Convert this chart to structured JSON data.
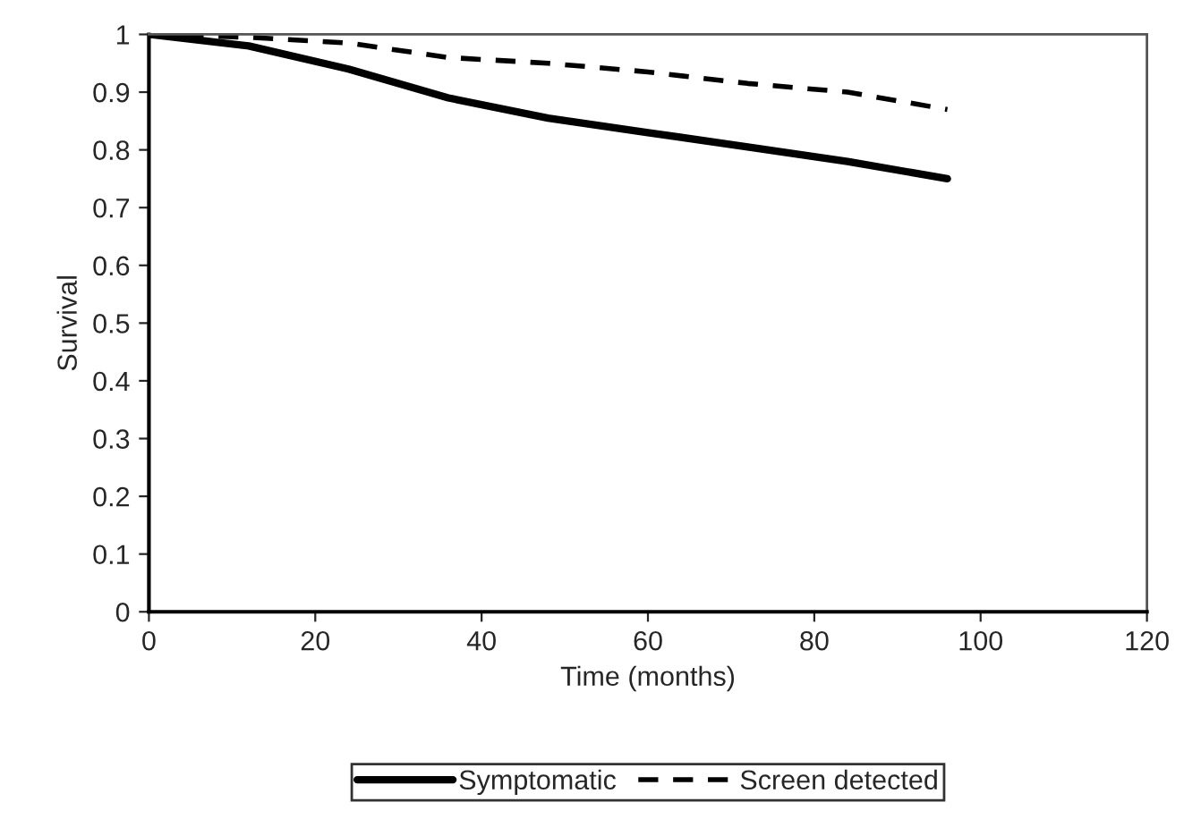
{
  "chart_data": {
    "type": "line",
    "xlabel": "Time (months)",
    "ylabel": "Survival",
    "xlim": [
      0,
      120
    ],
    "xticks": [
      0,
      20,
      40,
      60,
      80,
      100,
      120
    ],
    "ylim": [
      0,
      1
    ],
    "yticks": [
      0,
      0.1,
      0.2,
      0.3,
      0.4,
      0.5,
      0.6,
      0.7,
      0.8,
      0.9,
      1
    ],
    "grid": false,
    "legend": "bottom",
    "series": [
      {
        "name": "Symptomatic",
        "color": "#000000",
        "line_style": "solid",
        "x": [
          0,
          12,
          24,
          36,
          48,
          60,
          72,
          84,
          96
        ],
        "values": [
          1,
          0.98,
          0.94,
          0.89,
          0.855,
          0.83,
          0.805,
          0.78,
          0.75
        ]
      },
      {
        "name": "Screen detected",
        "color": "#000000",
        "line_style": "dashed",
        "x": [
          0,
          12,
          24,
          36,
          48,
          60,
          72,
          84,
          96
        ],
        "values": [
          1,
          0.995,
          0.985,
          0.96,
          0.95,
          0.935,
          0.915,
          0.9,
          0.87
        ]
      }
    ]
  }
}
